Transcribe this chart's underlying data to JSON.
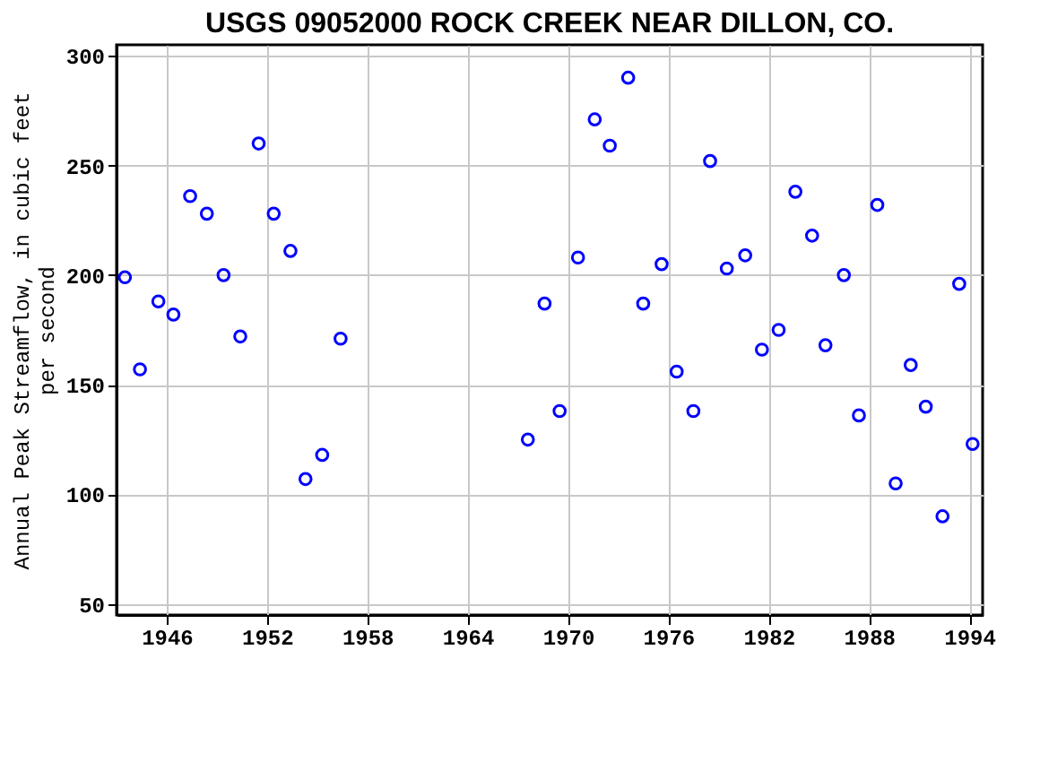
{
  "chart_data": {
    "type": "scatter",
    "title": "USGS 09052000 ROCK CREEK NEAR DILLON, CO.",
    "ylabel": "Annual Peak Streamflow, in cubic feet per second",
    "x": [
      1943.5,
      1944.4,
      1945.5,
      1946.4,
      1947.4,
      1948.4,
      1949.4,
      1950.4,
      1951.5,
      1952.4,
      1953.4,
      1954.3,
      1955.3,
      1956.4,
      1967.6,
      1968.6,
      1969.5,
      1970.6,
      1971.6,
      1972.5,
      1973.6,
      1974.5,
      1975.6,
      1976.5,
      1977.5,
      1978.5,
      1979.5,
      1980.6,
      1981.6,
      1982.6,
      1983.6,
      1984.6,
      1985.4,
      1986.5,
      1987.4,
      1988.5,
      1989.6,
      1990.5,
      1991.4,
      1992.4,
      1993.4,
      1994.2
    ],
    "series": [
      {
        "color": "#0000ff",
        "values": [
          199,
          157,
          188,
          182,
          236,
          228,
          200,
          172,
          260,
          228,
          211,
          107,
          118,
          171,
          125,
          187,
          138,
          208,
          271,
          259,
          290,
          187,
          205,
          156,
          138,
          252,
          203,
          209,
          166,
          175,
          238,
          218,
          168,
          200,
          136,
          232,
          105,
          159,
          140,
          90,
          196,
          123
        ]
      }
    ],
    "xlim": [
      1943,
      1994.8
    ],
    "xticks": [
      1946,
      1952,
      1958,
      1964,
      1970,
      1976,
      1982,
      1988,
      1994
    ],
    "ylim": [
      45,
      305
    ],
    "yticks": [
      50,
      100,
      150,
      200,
      250,
      300
    ],
    "grid": true,
    "marker": "circle",
    "legend": false
  }
}
